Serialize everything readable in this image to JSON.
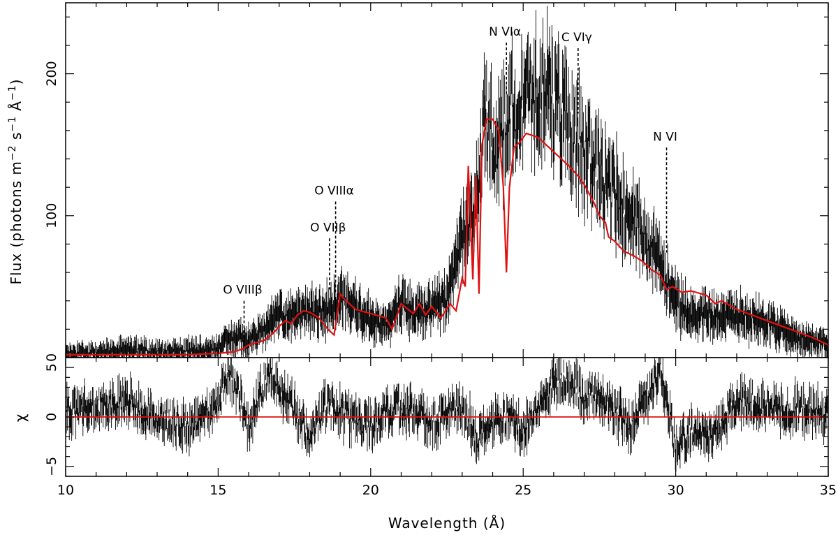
{
  "chart_data": [
    {
      "type": "line",
      "panel": "spectrum",
      "xlabel": "Wavelength (Å)",
      "ylabel": {
        "prefix": "Flux (photons m",
        "exp1": "−2",
        "mid1": " s",
        "exp2": "−1",
        "mid2": " Å",
        "exp3": "−1",
        "suffix": ")"
      },
      "xlim": [
        10,
        35
      ],
      "ylim": [
        0,
        250
      ],
      "x_ticks": [
        10,
        15,
        20,
        25,
        30,
        35
      ],
      "y_ticks": [
        0,
        100,
        200
      ],
      "y_tick_labels": [
        "0",
        "100",
        "200"
      ],
      "model_color": "#e01010",
      "data_color": "#000000",
      "series": [
        {
          "role": "observed",
          "x": [
            10,
            11,
            12,
            13,
            14,
            15,
            15.5,
            16,
            16.5,
            17,
            17.5,
            18,
            18.5,
            19,
            19.5,
            20,
            20.5,
            21,
            21.5,
            22,
            22.5,
            23,
            23.3,
            23.5,
            23.8,
            24,
            24.3,
            24.6,
            25,
            25.5,
            26,
            26.3,
            26.6,
            27,
            27.5,
            28,
            28.5,
            29,
            29.5,
            30,
            30.5,
            31,
            31.5,
            32,
            33,
            34,
            35
          ],
          "y": [
            3,
            3,
            6,
            4,
            5,
            6,
            16,
            11,
            20,
            30,
            28,
            32,
            33,
            42,
            34,
            28,
            22,
            40,
            30,
            34,
            40,
            85,
            95,
            120,
            175,
            150,
            150,
            180,
            175,
            190,
            180,
            170,
            160,
            145,
            130,
            115,
            100,
            85,
            65,
            40,
            30,
            30,
            28,
            30,
            25,
            15,
            10
          ]
        },
        {
          "role": "model",
          "x": [
            10,
            11,
            12,
            13,
            14,
            15,
            15.5,
            15.8,
            16,
            16.5,
            16.8,
            17,
            17.2,
            17.4,
            17.6,
            17.8,
            18,
            18.3,
            18.6,
            18.8,
            19.0,
            19.1,
            19.3,
            19.5,
            20,
            20.5,
            20.7,
            21,
            21.4,
            21.6,
            21.8,
            22,
            22.3,
            22.6,
            22.8,
            23.0,
            23.1,
            23.2,
            23.35,
            23.45,
            23.55,
            23.65,
            23.8,
            24.0,
            24.2,
            24.35,
            24.45,
            24.55,
            24.7,
            24.9,
            25.1,
            25.5,
            26,
            26.5,
            26.8,
            27,
            27.3,
            27.5,
            27.7,
            27.8,
            28,
            28.3,
            28.6,
            28.9,
            29.2,
            29.5,
            29.7,
            29.9,
            30.2,
            30.5,
            31,
            31.3,
            31.5,
            32,
            32.5,
            33,
            33.5,
            34,
            34.5,
            35
          ],
          "y": [
            2,
            2,
            2,
            2,
            2,
            3,
            4,
            6,
            9,
            12,
            17,
            22,
            26,
            24,
            30,
            33,
            32,
            28,
            20,
            16,
            45,
            42,
            38,
            34,
            31,
            28,
            20,
            38,
            31,
            38,
            30,
            36,
            28,
            38,
            33,
            56,
            50,
            135,
            55,
            128,
            45,
            150,
            168,
            168,
            160,
            120,
            60,
            120,
            148,
            152,
            158,
            155,
            145,
            135,
            128,
            122,
            110,
            100,
            95,
            85,
            82,
            75,
            72,
            68,
            62,
            58,
            48,
            50,
            46,
            47,
            44,
            38,
            40,
            34,
            30,
            26,
            22,
            18,
            14,
            9
          ]
        }
      ],
      "annotations": [
        {
          "label": "O VIIIβ",
          "x": 15.85,
          "y_top": 40,
          "y_bottom": 8
        },
        {
          "label": "O VIIβ",
          "x": 18.65,
          "y_top": 84,
          "y_bottom": 48
        },
        {
          "label": "O VIIIα",
          "x": 18.85,
          "y_top": 110,
          "y_bottom": 46
        },
        {
          "label": "N VIα",
          "x": 24.45,
          "y_top": 222,
          "y_bottom": 184
        },
        {
          "label": "C VIγ",
          "x": 26.8,
          "y_top": 218,
          "y_bottom": 172
        },
        {
          "label": "N VI",
          "x": 29.7,
          "y_top": 148,
          "y_bottom": 74
        }
      ]
    },
    {
      "type": "line",
      "panel": "residuals",
      "xlabel": "Wavelength (Å)",
      "ylabel": "χ",
      "xlim": [
        10,
        35
      ],
      "ylim": [
        -6,
        6
      ],
      "x_ticks": [
        10,
        15,
        20,
        25,
        30,
        35
      ],
      "x_tick_labels": [
        "10",
        "15",
        "20",
        "25",
        "30",
        "35"
      ],
      "y_ticks": [
        -5,
        0,
        5
      ],
      "y_tick_labels": [
        "−5",
        "0",
        "5"
      ],
      "zero_line_color": "#e01010",
      "series": [
        {
          "role": "residual",
          "x": [
            10,
            11,
            12,
            13,
            14,
            15,
            15.3,
            15.6,
            16,
            16.7,
            17,
            17.5,
            18,
            18.5,
            19,
            19.5,
            20,
            20.5,
            21,
            21.5,
            22,
            22.5,
            23,
            23.5,
            24,
            24.5,
            25,
            25.5,
            26,
            26.5,
            27,
            27.5,
            28,
            28.5,
            29,
            29.5,
            30,
            30.5,
            31,
            31.5,
            32,
            32.5,
            33,
            33.5,
            34,
            34.5,
            35
          ],
          "y": [
            0.5,
            0.8,
            1.5,
            0.2,
            -1,
            1,
            4.5,
            3,
            -1,
            5,
            3,
            0.5,
            -2,
            1,
            0.5,
            -0.5,
            -1,
            0.5,
            1,
            0.3,
            -0.8,
            0.5,
            1,
            -2,
            -1,
            0.5,
            -1.5,
            1,
            3.5,
            4,
            2,
            2.5,
            0.5,
            -1,
            1.5,
            5,
            -3,
            -1.5,
            -2,
            -0.5,
            1.5,
            1.5,
            1,
            0.5,
            1,
            0.5,
            0
          ]
        }
      ]
    }
  ]
}
